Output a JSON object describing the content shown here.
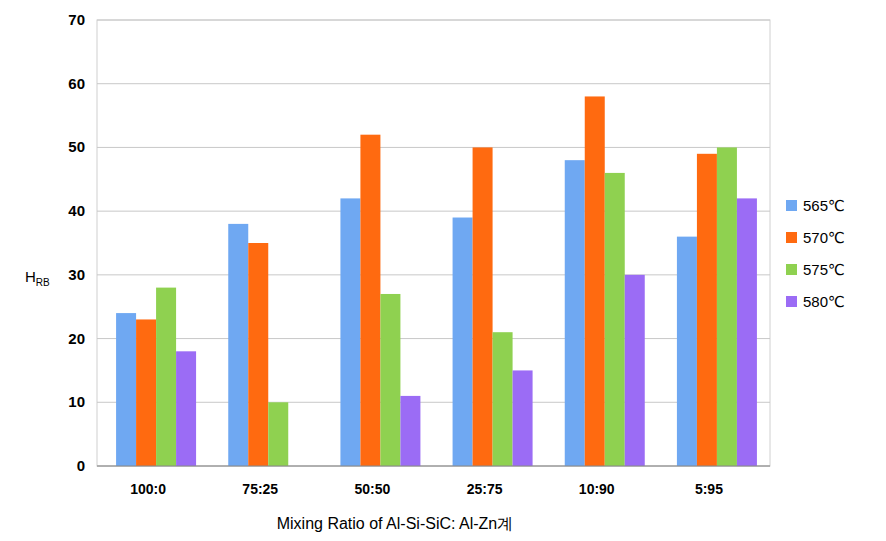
{
  "chart_data": {
    "type": "bar",
    "x_label": "Mixing Ratio of Al-Si-SiC: Al-Zn계",
    "y_label": "HRB",
    "categories": [
      "100:0",
      "75:25",
      "50:50",
      "25:75",
      "10:90",
      "5:95"
    ],
    "series": [
      {
        "name": "565℃",
        "color": "#6fa8f2",
        "values": [
          24,
          38,
          42,
          39,
          48,
          36
        ]
      },
      {
        "name": "570℃",
        "color": "#ff6a10",
        "values": [
          23,
          35,
          52,
          50,
          58,
          49
        ]
      },
      {
        "name": "575℃",
        "color": "#8fd150",
        "values": [
          28,
          10,
          27,
          21,
          46,
          50
        ]
      },
      {
        "name": "580℃",
        "color": "#9b6cf5",
        "values": [
          18,
          null,
          11,
          15,
          30,
          42
        ]
      }
    ],
    "ylim": [
      0,
      70
    ],
    "yticks": [
      0,
      10,
      20,
      30,
      40,
      50,
      60,
      70
    ],
    "grid": true,
    "legend": "right"
  }
}
